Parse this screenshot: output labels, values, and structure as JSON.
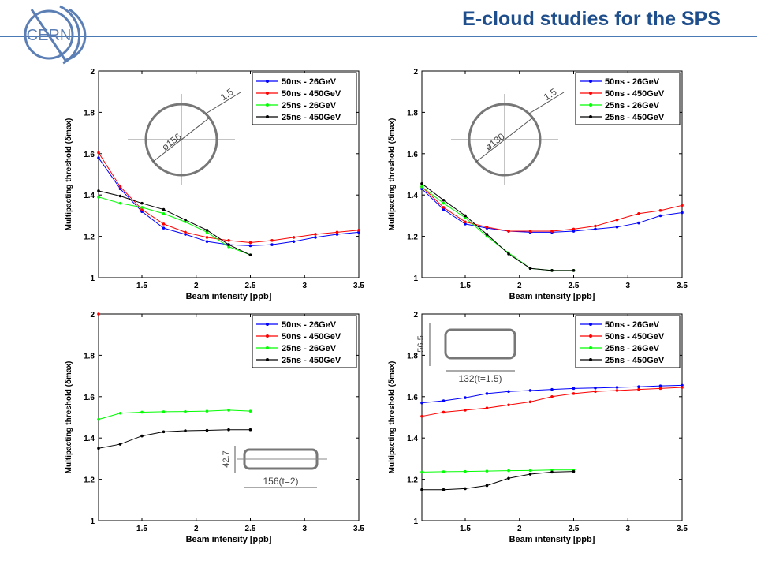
{
  "slide": {
    "title": "E-cloud studies for the SPS",
    "logo_text": "CERN",
    "colors": {
      "title": "#1f4e8c",
      "rule": "#4a7ab5",
      "logo": "#5b7fb5"
    }
  },
  "chart_data": [
    {
      "type": "line",
      "xlabel": "Beam intensity [ppb]",
      "ylabel": "Multipacting threshold (δmax)",
      "xlim": [
        1.1,
        3.5
      ],
      "ylim": [
        1,
        2
      ],
      "xticks": [
        "1.5",
        "2",
        "2.5",
        "3",
        "3.5"
      ],
      "yticks": [
        "1",
        "1.2",
        "1.4",
        "1.6",
        "1.8",
        "2"
      ],
      "legend_position": "top-right",
      "inset": {
        "shape": "circle",
        "labels": [
          "ø156",
          "1.5"
        ]
      },
      "series": [
        {
          "name": "50ns - 26GeV",
          "color": "#0000ff",
          "x": [
            1.1,
            1.3,
            1.5,
            1.7,
            1.9,
            2.1,
            2.3,
            2.5,
            2.7,
            2.9,
            3.1,
            3.3,
            3.5
          ],
          "y": [
            1.58,
            1.43,
            1.32,
            1.24,
            1.21,
            1.175,
            1.16,
            1.155,
            1.16,
            1.175,
            1.195,
            1.21,
            1.22
          ]
        },
        {
          "name": "50ns - 450GeV",
          "color": "#ff0000",
          "x": [
            1.1,
            1.3,
            1.5,
            1.7,
            1.9,
            2.1,
            2.3,
            2.5,
            2.7,
            2.9,
            3.1,
            3.3,
            3.5
          ],
          "y": [
            1.605,
            1.44,
            1.33,
            1.26,
            1.22,
            1.195,
            1.18,
            1.17,
            1.18,
            1.195,
            1.21,
            1.22,
            1.23
          ]
        },
        {
          "name": "25ns - 26GeV",
          "color": "#00ff00",
          "x": [
            1.1,
            1.3,
            1.5,
            1.7,
            1.9,
            2.1,
            2.3,
            2.5
          ],
          "y": [
            1.39,
            1.36,
            1.34,
            1.31,
            1.27,
            1.22,
            1.15,
            1.11
          ]
        },
        {
          "name": "25ns - 450GeV",
          "color": "#000000",
          "x": [
            1.1,
            1.3,
            1.5,
            1.7,
            1.9,
            2.1,
            2.3,
            2.5
          ],
          "y": [
            1.42,
            1.395,
            1.36,
            1.33,
            1.28,
            1.23,
            1.16,
            1.11
          ]
        }
      ]
    },
    {
      "type": "line",
      "xlabel": "Beam intensity [ppb]",
      "ylabel": "Multipacting threshold (δmax)",
      "xlim": [
        1.1,
        3.5
      ],
      "ylim": [
        1,
        2
      ],
      "xticks": [
        "1.5",
        "2",
        "2.5",
        "3",
        "3.5"
      ],
      "yticks": [
        "1",
        "1.2",
        "1.4",
        "1.6",
        "1.8",
        "2"
      ],
      "legend_position": "top-right",
      "inset": {
        "shape": "circle",
        "labels": [
          "ø130",
          "1.5"
        ]
      },
      "series": [
        {
          "name": "50ns - 26GeV",
          "color": "#0000ff",
          "x": [
            1.1,
            1.3,
            1.5,
            1.7,
            1.9,
            2.1,
            2.3,
            2.5,
            2.7,
            2.9,
            3.1,
            3.3,
            3.5
          ],
          "y": [
            1.43,
            1.33,
            1.26,
            1.24,
            1.225,
            1.22,
            1.22,
            1.225,
            1.235,
            1.245,
            1.265,
            1.3,
            1.315
          ]
        },
        {
          "name": "50ns - 450GeV",
          "color": "#ff0000",
          "x": [
            1.1,
            1.3,
            1.5,
            1.7,
            1.9,
            2.1,
            2.3,
            2.5,
            2.7,
            2.9,
            3.1,
            3.3,
            3.5
          ],
          "y": [
            1.44,
            1.34,
            1.27,
            1.245,
            1.225,
            1.225,
            1.225,
            1.235,
            1.25,
            1.28,
            1.31,
            1.325,
            1.35
          ]
        },
        {
          "name": "25ns - 26GeV",
          "color": "#00ff00",
          "x": [
            1.1,
            1.3,
            1.5,
            1.7,
            1.9,
            2.1,
            2.3,
            2.5
          ],
          "y": [
            1.44,
            1.36,
            1.29,
            1.2,
            1.12,
            1.045,
            1.035,
            1.035
          ]
        },
        {
          "name": "25ns - 450GeV",
          "color": "#000000",
          "x": [
            1.1,
            1.3,
            1.5,
            1.7,
            1.9,
            2.1,
            2.3,
            2.5
          ],
          "y": [
            1.455,
            1.375,
            1.3,
            1.21,
            1.115,
            1.045,
            1.035,
            1.035
          ]
        }
      ]
    },
    {
      "type": "line",
      "xlabel": "Beam intensity [ppb]",
      "ylabel": "Multipacting threshold (δmax)",
      "xlim": [
        1.1,
        3.5
      ],
      "ylim": [
        1,
        2
      ],
      "xticks": [
        "1.5",
        "2",
        "2.5",
        "3",
        "3.5"
      ],
      "yticks": [
        "1",
        "1.2",
        "1.4",
        "1.6",
        "1.8",
        "2"
      ],
      "legend_position": "top-right",
      "inset": {
        "shape": "rectangle",
        "labels": [
          "42.7",
          "156(t=2)"
        ]
      },
      "series": [
        {
          "name": "50ns - 26GeV",
          "color": "#0000ff",
          "x": [],
          "y": []
        },
        {
          "name": "50ns - 450GeV",
          "color": "#ff0000",
          "x": [
            1.1
          ],
          "y": [
            2.0
          ]
        },
        {
          "name": "25ns - 26GeV",
          "color": "#00ff00",
          "x": [
            1.1,
            1.3,
            1.5,
            1.7,
            1.9,
            2.1,
            2.3,
            2.5
          ],
          "y": [
            1.49,
            1.52,
            1.525,
            1.527,
            1.528,
            1.53,
            1.535,
            1.53
          ]
        },
        {
          "name": "25ns - 450GeV",
          "color": "#000000",
          "x": [
            1.1,
            1.3,
            1.5,
            1.7,
            1.9,
            2.1,
            2.3,
            2.5
          ],
          "y": [
            1.35,
            1.37,
            1.41,
            1.43,
            1.435,
            1.437,
            1.44,
            1.44
          ]
        }
      ]
    },
    {
      "type": "line",
      "xlabel": "Beam intensity [ppb]",
      "ylabel": "Multipacting threshold (δmax)",
      "xlim": [
        1.1,
        3.5
      ],
      "ylim": [
        1,
        2
      ],
      "xticks": [
        "1.5",
        "2",
        "2.5",
        "3",
        "3.5"
      ],
      "yticks": [
        "1",
        "1.2",
        "1.4",
        "1.6",
        "1.8",
        "2"
      ],
      "legend_position": "top-right",
      "inset": {
        "shape": "rectangle",
        "labels": [
          "56.5",
          "132(t=1.5)"
        ]
      },
      "series": [
        {
          "name": "50ns - 26GeV",
          "color": "#0000ff",
          "x": [
            1.1,
            1.3,
            1.5,
            1.7,
            1.9,
            2.1,
            2.3,
            2.5,
            2.7,
            2.9,
            3.1,
            3.3,
            3.5
          ],
          "y": [
            1.57,
            1.58,
            1.595,
            1.615,
            1.625,
            1.63,
            1.635,
            1.64,
            1.642,
            1.645,
            1.648,
            1.652,
            1.655
          ]
        },
        {
          "name": "50ns - 450GeV",
          "color": "#ff0000",
          "x": [
            1.1,
            1.3,
            1.5,
            1.7,
            1.9,
            2.1,
            2.3,
            2.5,
            2.7,
            2.9,
            3.1,
            3.3,
            3.5
          ],
          "y": [
            1.505,
            1.525,
            1.535,
            1.545,
            1.56,
            1.575,
            1.6,
            1.615,
            1.625,
            1.63,
            1.635,
            1.64,
            1.645
          ]
        },
        {
          "name": "25ns - 26GeV",
          "color": "#00ff00",
          "x": [
            1.1,
            1.3,
            1.5,
            1.7,
            1.9,
            2.1,
            2.3,
            2.5
          ],
          "y": [
            1.235,
            1.237,
            1.238,
            1.24,
            1.242,
            1.243,
            1.245,
            1.245
          ]
        },
        {
          "name": "25ns - 450GeV",
          "color": "#000000",
          "x": [
            1.1,
            1.3,
            1.5,
            1.7,
            1.9,
            2.1,
            2.3,
            2.5
          ],
          "y": [
            1.15,
            1.15,
            1.155,
            1.17,
            1.205,
            1.225,
            1.235,
            1.238
          ]
        }
      ]
    }
  ]
}
